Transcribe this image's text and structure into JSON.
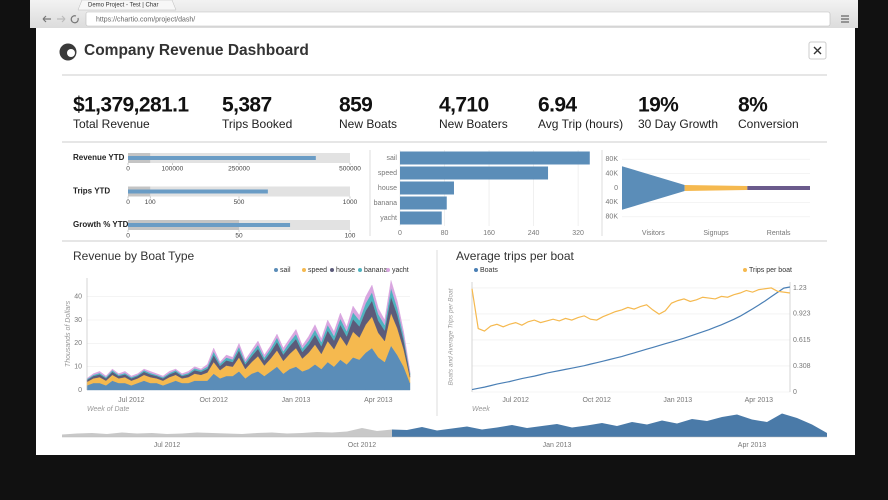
{
  "browser": {
    "tab_title": "Demo Project - Test | Char",
    "url": "https://chartio.com/project/dash/"
  },
  "dashboard": {
    "title": "Company Revenue Dashboard"
  },
  "kpis": [
    {
      "value": "$1,379,281.1",
      "label": "Total Revenue"
    },
    {
      "value": "5,387",
      "label": "Trips Booked"
    },
    {
      "value": "859",
      "label": "New Boats"
    },
    {
      "value": "4,710",
      "label": "New Boaters"
    },
    {
      "value": "6.94",
      "label": "Avg Trip (hours)"
    },
    {
      "value": "19%",
      "label": "30 Day Growth"
    },
    {
      "value": "8%",
      "label": "Conversion"
    }
  ],
  "chart_data": [
    {
      "type": "bullet",
      "color": "#6a9cc5",
      "range_colors": [
        "#c4c4c4",
        "#e2e2e2"
      ],
      "rows": [
        {
          "name": "Revenue YTD",
          "value": 423000,
          "ranges": [
            50000,
            500000
          ],
          "xlim": [
            0,
            500000
          ],
          "xticks": [
            0,
            100000,
            250000,
            500000
          ]
        },
        {
          "name": "Trips YTD",
          "value": 630,
          "ranges": [
            100,
            1000
          ],
          "xlim": [
            0,
            1000
          ],
          "xticks": [
            0,
            100,
            500,
            1000
          ]
        },
        {
          "name": "Growth % YTD",
          "value": 73,
          "ranges": [
            50,
            100
          ],
          "xlim": [
            0,
            100
          ],
          "xticks": [
            0,
            50,
            100
          ]
        }
      ]
    },
    {
      "type": "bar",
      "orientation": "horizontal",
      "categories": [
        "sail",
        "speed",
        "house",
        "banana",
        "yacht"
      ],
      "values": [
        341,
        266,
        97,
        84,
        75
      ],
      "color": "#5b8db8",
      "xlim": [
        0,
        345
      ],
      "xticks": [
        0,
        80,
        160,
        240,
        320
      ],
      "grid": true
    },
    {
      "type": "funnel",
      "categories": [
        "Visitors",
        "Signups",
        "Rentals"
      ],
      "values": [
        121000,
        17000,
        11000
      ],
      "colors": [
        "#5b8db8",
        "#f5b94f",
        "#6b5b8c"
      ],
      "ylim": [
        -100000,
        100000
      ],
      "yticks": [
        {
          "value": 80000,
          "label": "80K"
        },
        {
          "value": 40000,
          "label": "40K"
        },
        0,
        {
          "value": -40000,
          "label": "40K"
        },
        {
          "value": -80000,
          "label": "80K"
        }
      ],
      "grid": true
    },
    {
      "type": "stacked-area",
      "title": "Revenue by Boat Type",
      "y_label": "Thousands of Dollars",
      "x_label": "Week of Date",
      "categories": [
        null,
        null,
        null,
        null,
        null,
        null,
        null,
        "Jul 2012",
        null,
        null,
        null,
        null,
        null,
        null,
        null,
        null,
        null,
        null,
        null,
        null,
        "Oct 2012",
        null,
        null,
        null,
        null,
        null,
        null,
        null,
        null,
        null,
        null,
        null,
        null,
        "Jan 2013",
        null,
        null,
        null,
        null,
        null,
        null,
        null,
        null,
        null,
        null,
        null,
        null,
        "Apr 2013",
        null,
        null,
        null,
        null,
        null
      ],
      "ylim": [
        0,
        48
      ],
      "yticks": [
        0,
        10,
        20,
        30,
        40
      ],
      "grid": true,
      "series": [
        {
          "name": "sail",
          "color": "#5b8db8",
          "values": [
            2,
            3,
            3,
            2,
            4,
            3,
            3,
            2,
            3,
            4,
            3,
            3,
            2,
            3,
            4,
            3,
            3,
            4,
            4,
            4,
            7,
            5,
            6,
            6,
            8,
            5,
            7,
            8,
            6,
            8,
            10,
            7,
            9,
            10,
            8,
            9,
            11,
            9,
            12,
            10,
            13,
            11,
            14,
            13,
            16,
            18,
            14,
            12,
            19,
            15,
            10,
            3
          ]
        },
        {
          "name": "speed",
          "color": "#f5b94f",
          "values": [
            1.5,
            2,
            2.5,
            2,
            2.5,
            2,
            2.5,
            2,
            2,
            2.5,
            2.5,
            2,
            2,
            2.5,
            2.5,
            2,
            2.5,
            3,
            2.5,
            3.5,
            5,
            3.5,
            4.5,
            4,
            6,
            4,
            5,
            6.5,
            4.5,
            5.5,
            7,
            5.5,
            6.5,
            8,
            5.5,
            7,
            8.5,
            6.5,
            9,
            7.5,
            10,
            8,
            11,
            9.5,
            12,
            13.5,
            10.5,
            9,
            14,
            11.5,
            7.5,
            2.5
          ]
        },
        {
          "name": "house",
          "color": "#5c5b7a",
          "values": [
            0.8,
            1,
            1.2,
            1,
            1.3,
            1,
            1.2,
            1,
            1,
            1.3,
            1.2,
            1,
            1,
            1.2,
            1.3,
            1,
            1.2,
            1.5,
            1.3,
            1.6,
            3,
            1.8,
            2.2,
            2,
            3,
            2,
            2.5,
            3.2,
            2.2,
            2.8,
            3.6,
            2.7,
            3.3,
            3.9,
            2.8,
            3.4,
            4.2,
            3.3,
            4.5,
            3.7,
            5,
            4,
            5.4,
            4.8,
            6,
            6.8,
            5.2,
            4.5,
            7,
            5.7,
            3.7,
            1.2
          ]
        },
        {
          "name": "banana",
          "color": "#4fb3bf",
          "values": [
            0.4,
            0.5,
            0.6,
            0.5,
            0.7,
            0.5,
            0.6,
            0.5,
            0.5,
            0.7,
            0.6,
            0.5,
            0.5,
            0.6,
            0.7,
            0.5,
            0.6,
            0.8,
            0.7,
            0.9,
            1.5,
            1,
            1.2,
            1.1,
            1.6,
            1,
            1.4,
            1.7,
            1.2,
            1.5,
            1.9,
            1.4,
            1.8,
            2.1,
            1.5,
            1.8,
            2.2,
            1.8,
            2.4,
            2,
            2.6,
            2.2,
            2.9,
            2.6,
            3.2,
            3.6,
            2.8,
            2.4,
            3.8,
            3,
            2,
            0.6
          ]
        },
        {
          "name": "yacht",
          "color": "#d9a6e0",
          "values": [
            0.3,
            0.5,
            0.7,
            0.5,
            0.5,
            0.5,
            0.7,
            0.5,
            0.5,
            0.5,
            0.7,
            0.5,
            0.5,
            0.7,
            0.5,
            0.5,
            0.7,
            0.7,
            0.5,
            1,
            1.5,
            0.7,
            1.1,
            0.9,
            1.4,
            1,
            1.1,
            1.6,
            1.1,
            1.2,
            1.5,
            1.4,
            1.4,
            2,
            1.2,
            1.8,
            2.1,
            1.4,
            2.1,
            1.8,
            2.4,
            1.8,
            2.7,
            2.1,
            2.8,
            3.1,
            2.5,
            2.1,
            3.2,
            2.8,
            1.8,
            0.7
          ]
        }
      ]
    },
    {
      "type": "line",
      "title": "Average trips per boat",
      "y_label": "Boats and Average Trips per Boat",
      "x_label": "Week",
      "categories": [
        null,
        null,
        null,
        null,
        null,
        null,
        null,
        "Jul 2012",
        null,
        null,
        null,
        null,
        null,
        null,
        null,
        null,
        null,
        null,
        null,
        null,
        "Oct 2012",
        null,
        null,
        null,
        null,
        null,
        null,
        null,
        null,
        null,
        null,
        null,
        null,
        "Jan 2013",
        null,
        null,
        null,
        null,
        null,
        null,
        null,
        null,
        null,
        null,
        null,
        null,
        "Apr 2013",
        null,
        null,
        null,
        null,
        null
      ],
      "ylim": [
        0,
        900
      ],
      "y2lim": [
        0,
        1.3
      ],
      "y2ticks": [
        0,
        0.308,
        0.615,
        0.923,
        1.23
      ],
      "grid": true,
      "series": [
        {
          "name": "Boats",
          "color": "#4a7fb5",
          "values": [
            20,
            30,
            40,
            52,
            65,
            75,
            85,
            98,
            110,
            120,
            130,
            142,
            155,
            165,
            175,
            185,
            195,
            205,
            215,
            228,
            240,
            252,
            265,
            278,
            290,
            305,
            320,
            335,
            350,
            365,
            380,
            395,
            410,
            425,
            440,
            458,
            475,
            492,
            510,
            530,
            550,
            572,
            595,
            620,
            650,
            680,
            712,
            745,
            780,
            815,
            850,
            859
          ]
        },
        {
          "name": "Trips per boat",
          "color": "#f5b94f",
          "axis": "y2",
          "values": [
            1.22,
            0.75,
            0.72,
            0.78,
            0.8,
            0.77,
            0.8,
            0.82,
            0.79,
            0.83,
            0.85,
            0.82,
            0.84,
            0.86,
            0.84,
            0.87,
            0.85,
            0.88,
            0.9,
            0.86,
            0.85,
            0.89,
            0.92,
            0.95,
            0.97,
            1.0,
            0.98,
            1.01,
            1.03,
            0.97,
            0.92,
            0.96,
            1.05,
            1.08,
            1.1,
            1.07,
            1.09,
            1.12,
            1.11,
            1.1,
            1.13,
            1.12,
            1.15,
            1.17,
            1.2,
            1.18,
            1.21,
            1.22,
            1.23,
            1.19,
            1.18,
            1.17
          ]
        }
      ]
    },
    {
      "type": "timeline",
      "categories": [
        null,
        null,
        null,
        null,
        null,
        null,
        null,
        "Jul 2012",
        null,
        null,
        null,
        null,
        null,
        null,
        null,
        null,
        null,
        null,
        null,
        null,
        "Oct 2012",
        null,
        null,
        null,
        null,
        null,
        null,
        null,
        null,
        null,
        null,
        null,
        null,
        "Jan 2013",
        null,
        null,
        null,
        null,
        null,
        null,
        null,
        null,
        null,
        null,
        null,
        null,
        "Apr 2013",
        null,
        null,
        null,
        null,
        null
      ],
      "values": [
        5,
        7,
        8,
        6,
        9,
        7,
        8,
        6,
        7,
        9,
        8,
        7,
        6,
        8,
        9,
        7,
        8,
        10,
        9,
        11,
        18,
        12,
        15,
        14,
        20,
        13,
        17,
        21,
        15,
        19,
        24,
        18,
        22,
        26,
        19,
        23,
        28,
        22,
        30,
        25,
        33,
        27,
        36,
        32,
        40,
        45,
        35,
        30,
        47,
        38,
        25,
        8
      ],
      "ylim": [
        0,
        60
      ],
      "selection_start": 22,
      "color": "#4a7aa8",
      "unselected_color": "#c8c8c8"
    }
  ]
}
